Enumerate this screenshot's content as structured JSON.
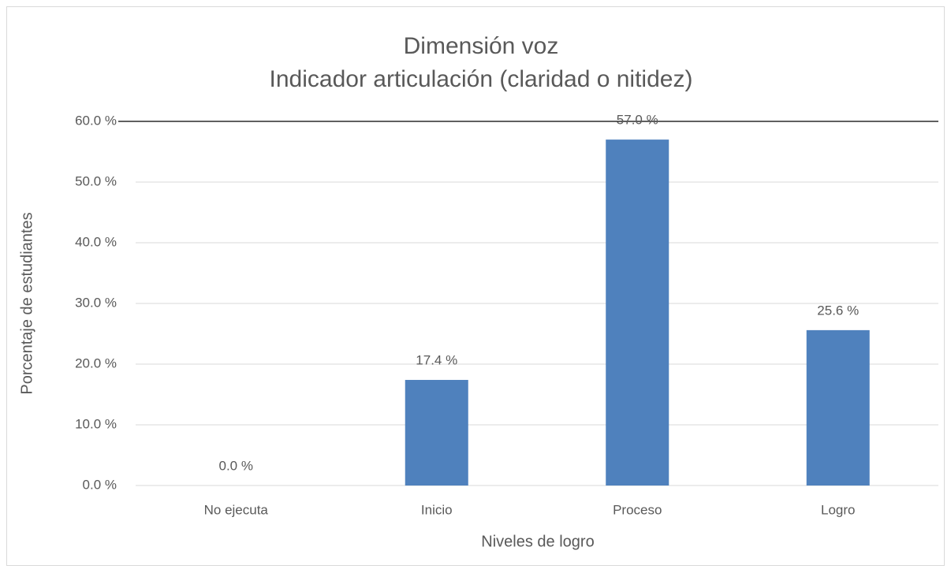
{
  "chart_data": {
    "type": "bar",
    "title": "Dimensión voz",
    "subtitle": "Indicador articulación (claridad o nitidez)",
    "x_label": "Niveles de logro",
    "y_label": "Porcentaje de estudiantes",
    "categories": [
      "No ejecuta",
      "Inicio",
      "Proceso",
      "Logro"
    ],
    "values": [
      0,
      17.4,
      57.0,
      25.6
    ],
    "value_labels": [
      "0.0 %",
      "17.4 %",
      "57.0 %",
      "25.6 %"
    ],
    "color": "#4f81bd",
    "ylim": [
      0,
      60
    ],
    "yticks": [
      {
        "value": 0,
        "label": "0.0 %"
      },
      {
        "value": 10,
        "label": "10.0 %"
      },
      {
        "value": 20,
        "label": "20.0 %"
      },
      {
        "value": 30,
        "label": "30.0 %"
      },
      {
        "value": 40,
        "label": "40.0 %"
      },
      {
        "value": 50,
        "label": "50.0 %"
      },
      {
        "value": 60,
        "label": "60.0 %"
      }
    ],
    "grid": true
  }
}
